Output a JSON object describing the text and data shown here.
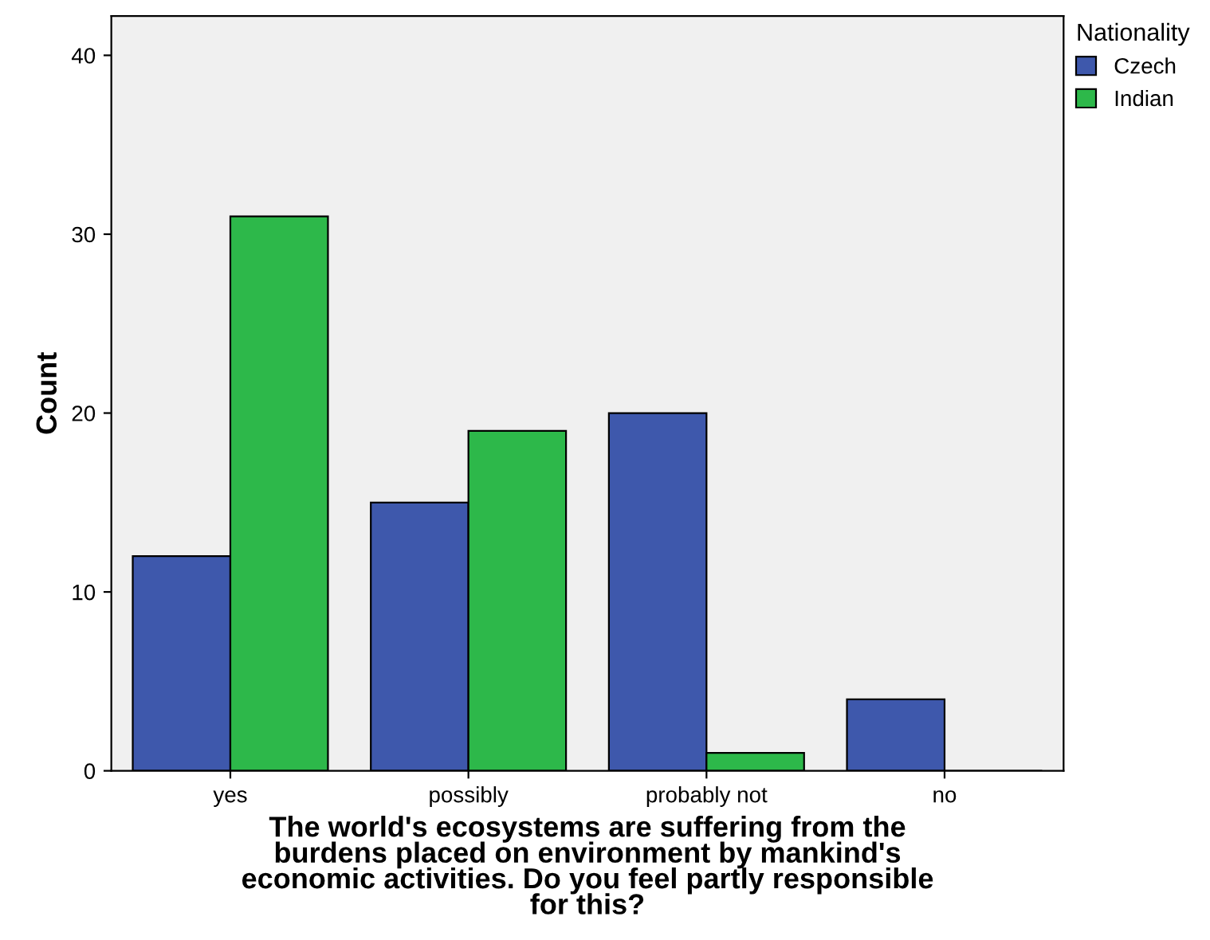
{
  "chart_data": {
    "type": "bar",
    "categories": [
      "yes",
      "possibly",
      "probably not",
      "no"
    ],
    "series": [
      {
        "name": "Czech",
        "color": "#3e58ac",
        "values": [
          12,
          15,
          20,
          4
        ]
      },
      {
        "name": "Indian",
        "color": "#2db84a",
        "values": [
          31,
          19,
          1,
          0
        ]
      }
    ],
    "xlabel": "The world's ecosystems are suffering from the\nburdens placed on environment by mankind's\neconomic activities. Do you feel partly responsible\nfor this?",
    "ylabel": "Count",
    "legend_title": "Nationality",
    "legend": "top right",
    "ylim": [
      0,
      42.2
    ],
    "yticks": [
      0,
      10,
      20,
      30,
      40
    ],
    "grid": false
  }
}
